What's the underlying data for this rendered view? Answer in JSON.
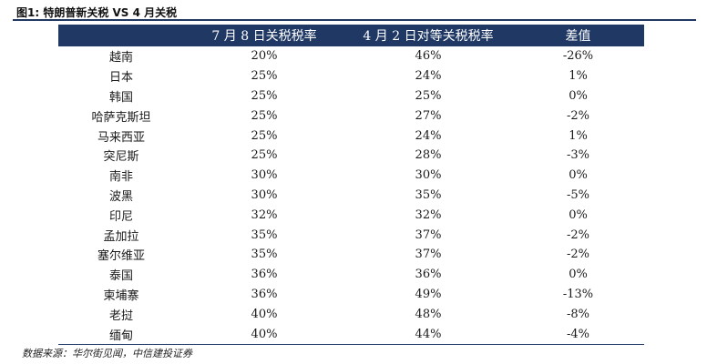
{
  "figure": {
    "title": "图1: 特朗普新关税 VS 4 月关税",
    "source": "数据来源：华尔街见闻，中信建投证券"
  },
  "table": {
    "headers": [
      "",
      "7 月 8 日关税税率",
      "4 月 2 日对等关税税率",
      "差值"
    ],
    "rows": [
      [
        "越南",
        "20%",
        "46%",
        "-26%"
      ],
      [
        "日本",
        "25%",
        "24%",
        "1%"
      ],
      [
        "韩国",
        "25%",
        "25%",
        "0%"
      ],
      [
        "哈萨克斯坦",
        "25%",
        "27%",
        "-2%"
      ],
      [
        "马来西亚",
        "25%",
        "24%",
        "1%"
      ],
      [
        "突尼斯",
        "25%",
        "28%",
        "-3%"
      ],
      [
        "南非",
        "30%",
        "30%",
        "0%"
      ],
      [
        "波黑",
        "30%",
        "35%",
        "-5%"
      ],
      [
        "印尼",
        "32%",
        "32%",
        "0%"
      ],
      [
        "孟加拉",
        "35%",
        "37%",
        "-2%"
      ],
      [
        "塞尔维亚",
        "35%",
        "37%",
        "-2%"
      ],
      [
        "泰国",
        "36%",
        "36%",
        "0%"
      ],
      [
        "柬埔寨",
        "36%",
        "49%",
        "-13%"
      ],
      [
        "老挝",
        "40%",
        "48%",
        "-8%"
      ],
      [
        "缅甸",
        "40%",
        "44%",
        "-4%"
      ]
    ]
  },
  "colors": {
    "header_bg": "#1f3864",
    "header_text": "#ffffff",
    "rule": "#1f3864"
  }
}
